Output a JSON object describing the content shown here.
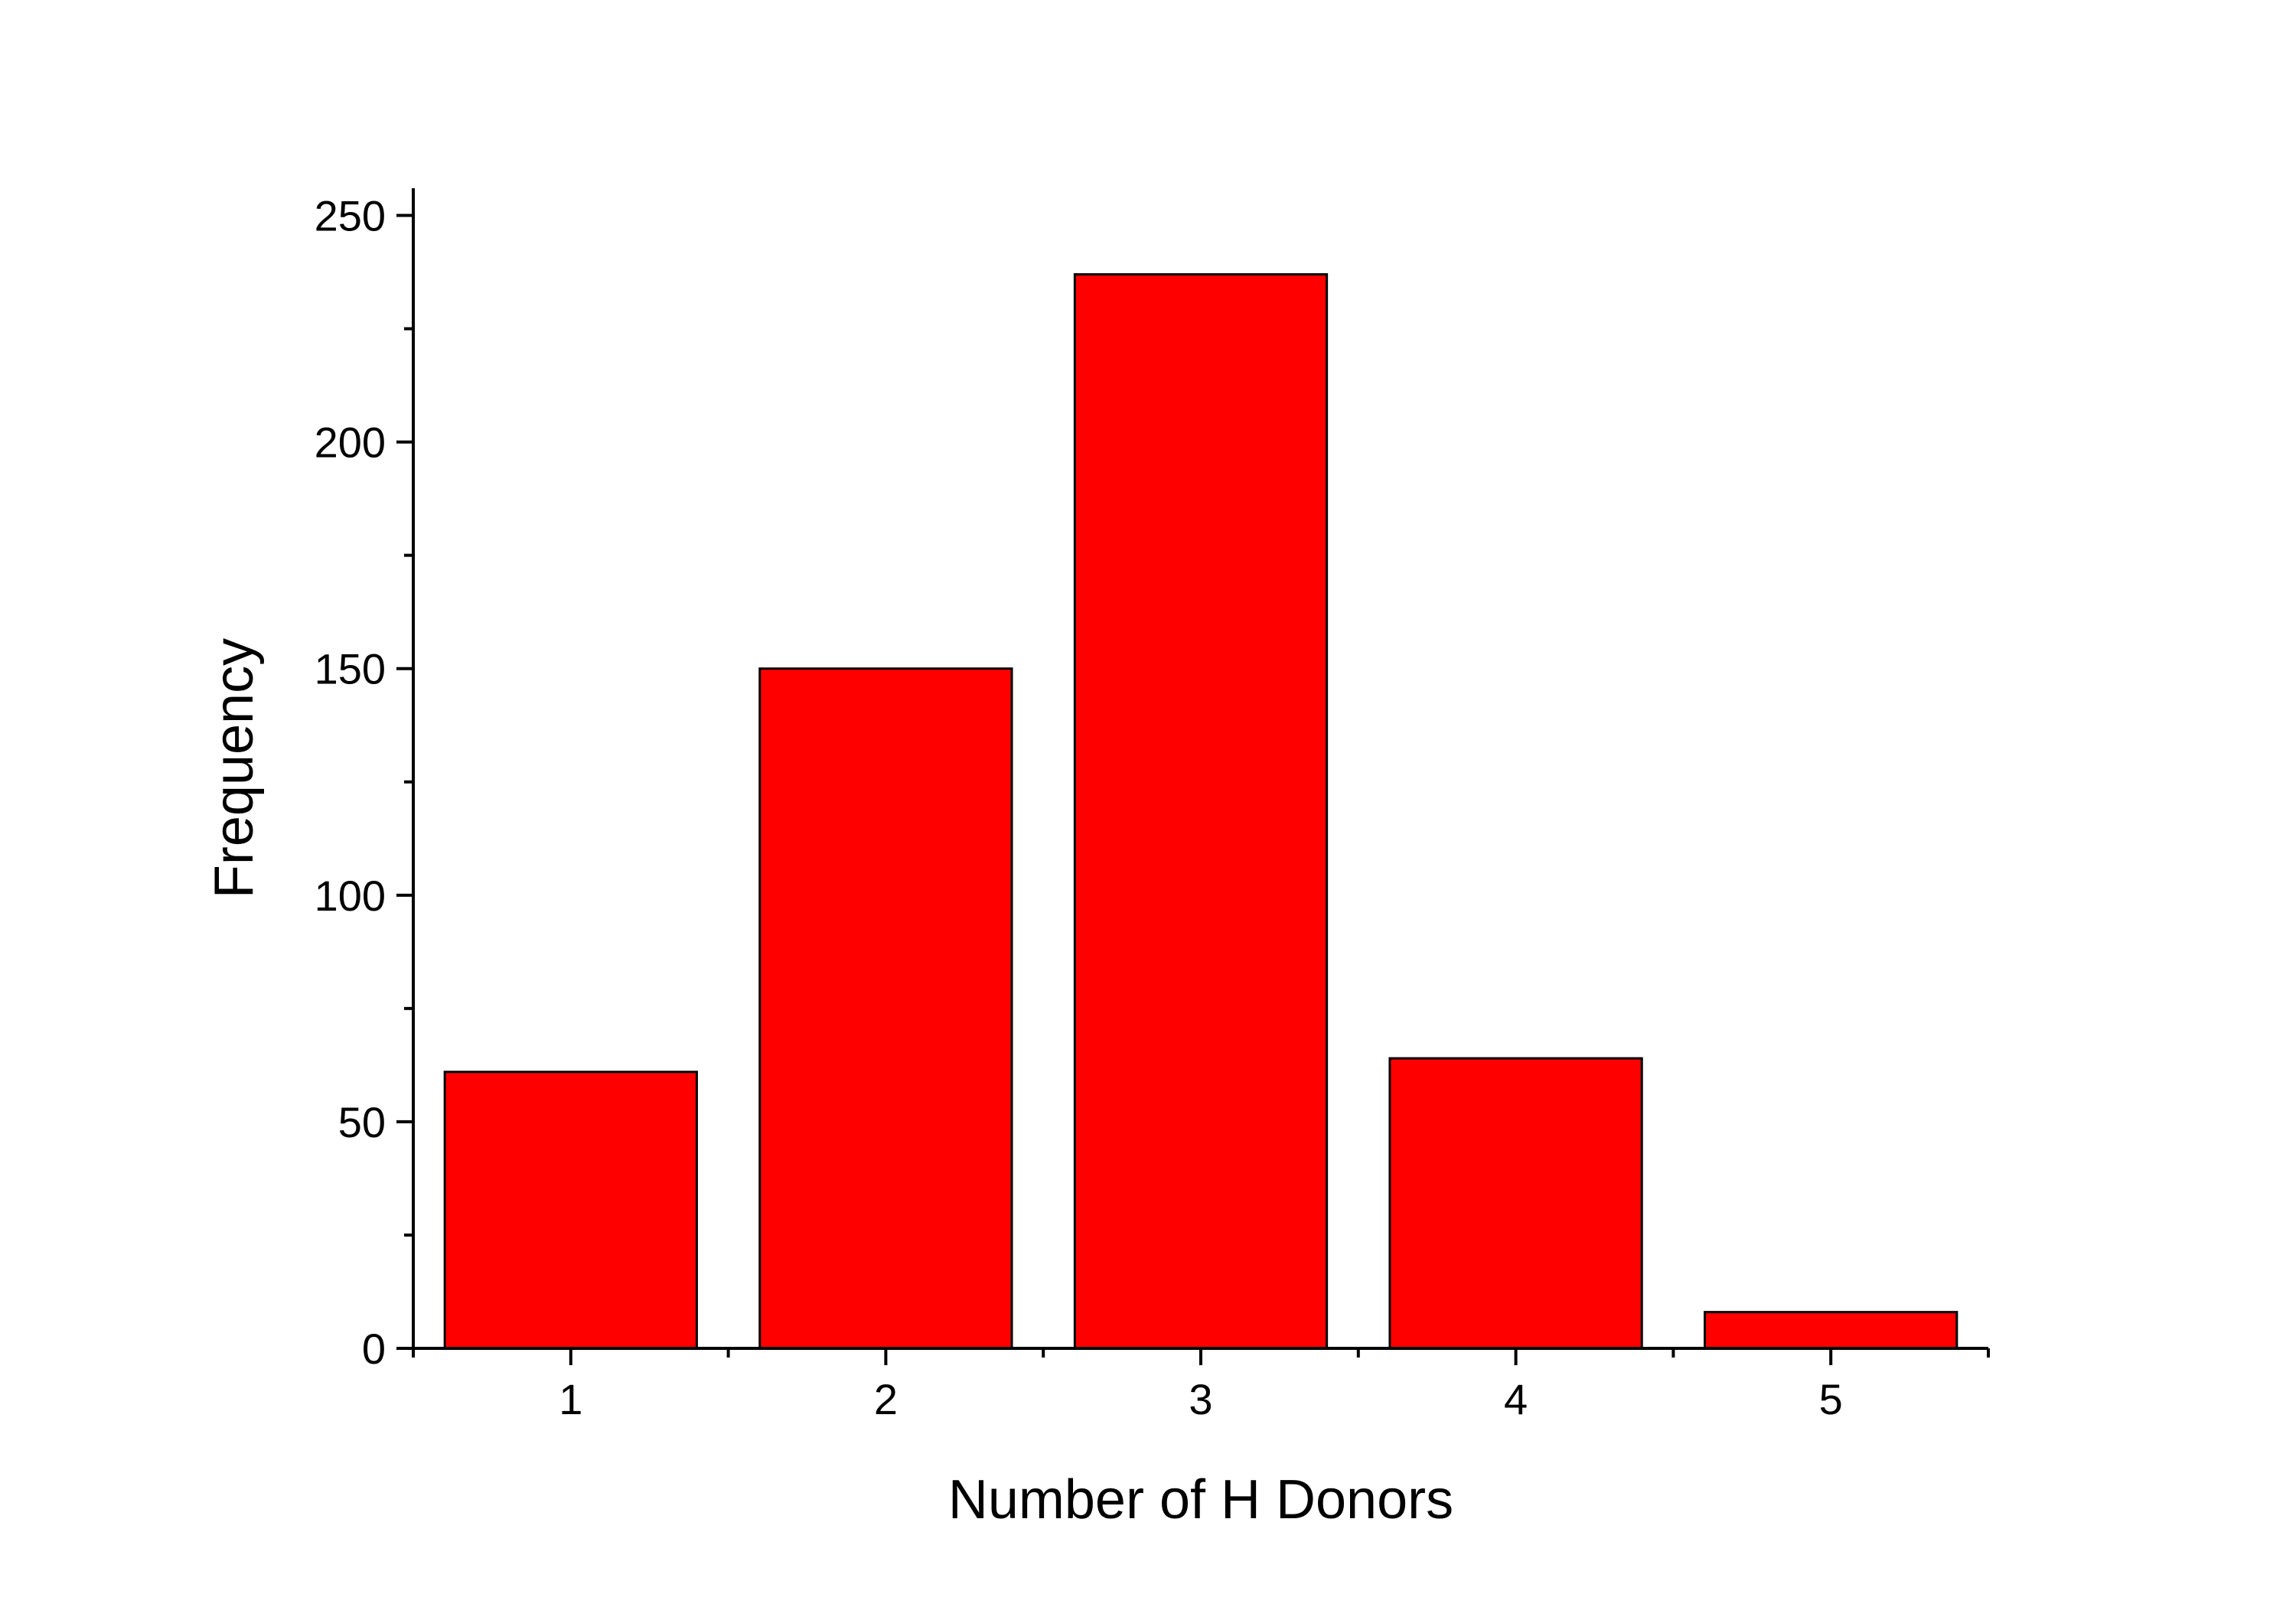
{
  "chart_data": {
    "type": "bar",
    "title": "",
    "xlabel": "Number of H Donors",
    "ylabel": "Frequency",
    "categories": [
      "1",
      "2",
      "3",
      "4",
      "5"
    ],
    "values": [
      61,
      150,
      237,
      64,
      8
    ],
    "ylim": [
      0,
      256
    ],
    "xlim": [
      0.5,
      5.5
    ],
    "y_major_ticks": [
      0,
      50,
      100,
      150,
      200,
      250
    ],
    "y_minor_ticks": [
      25,
      75,
      125,
      175,
      225
    ],
    "x_major_ticks": [
      1,
      2,
      3,
      4,
      5
    ],
    "x_minor_ticks": [
      0.5,
      1.5,
      2.5,
      3.5,
      4.5,
      5.5
    ],
    "bar_color": "#ff0000",
    "bar_edge_color": "#000000",
    "grid": false,
    "legend": "none"
  }
}
